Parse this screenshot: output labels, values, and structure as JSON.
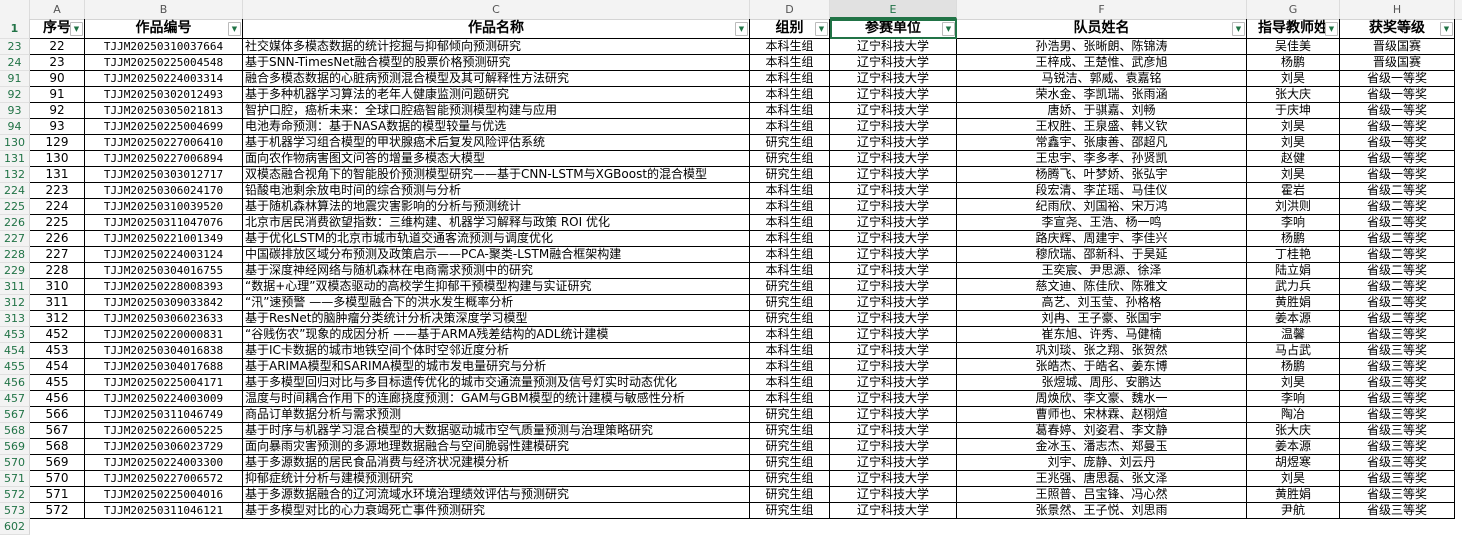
{
  "columns": [
    "A",
    "B",
    "C",
    "D",
    "E",
    "F",
    "G",
    "H"
  ],
  "selected_column": "E",
  "header_row_number": "1",
  "headers": [
    "序号",
    "作品编号",
    "作品名称",
    "组别",
    "参赛单位",
    "队员姓名",
    "指导教师姓",
    "获奖等级"
  ],
  "dropdown_icon": "filter-dropdown-icon",
  "accent_color": "#217346",
  "rows": [
    [
      "23",
      "22",
      "TJJM20250310037664",
      "社交媒体多模态数据的统计挖掘与抑郁倾向预测研究",
      "本科生组",
      "辽宁科技大学",
      "孙浩男、张晰朗、陈锦涛",
      "吴佳美",
      "晋级国赛"
    ],
    [
      "24",
      "23",
      "TJJM20250225004548",
      "基于SNN-TimesNet融合模型的股票价格预测研究",
      "本科生组",
      "辽宁科技大学",
      "王梓成、王楚惟、武彦旭",
      "杨鹏",
      "晋级国赛"
    ],
    [
      "91",
      "90",
      "TJJM20250224003314",
      "融合多模态数据的心脏病预测混合模型及其可解释性方法研究",
      "本科生组",
      "辽宁科技大学",
      "马锐洁、郭威、袁嘉铭",
      "刘昊",
      "省级一等奖"
    ],
    [
      "92",
      "91",
      "TJJM20250302012493",
      "基于多种机器学习算法的老年人健康监测问题研究",
      "本科生组",
      "辽宁科技大学",
      "荣水金、李凯瑞、张雨涵",
      "张大庆",
      "省级一等奖"
    ],
    [
      "93",
      "92",
      "TJJM20250305021813",
      "智护口腔，癌析未来：全球口腔癌智能预测模型构建与应用",
      "本科生组",
      "辽宁科技大学",
      "唐娇、于骐嘉、刘畅",
      "于庆坤",
      "省级一等奖"
    ],
    [
      "94",
      "93",
      "TJJM20250225004699",
      "电池寿命预测：基于NASA数据的模型较量与优选",
      "本科生组",
      "辽宁科技大学",
      "王权胜、王泉盛、韩义钦",
      "刘昊",
      "省级一等奖"
    ],
    [
      "130",
      "129",
      "TJJM20250227006410",
      "基于机器学习组合模型的甲状腺癌术后复发风险评估系统",
      "研究生组",
      "辽宁科技大学",
      "常鑫宇、张康善、邵超凡",
      "刘昊",
      "省级一等奖"
    ],
    [
      "131",
      "130",
      "TJJM20250227006894",
      "面向农作物病害图文问答的增量多模态大模型",
      "研究生组",
      "辽宁科技大学",
      "王忠宇、李多孝、孙贤凯",
      "赵健",
      "省级一等奖"
    ],
    [
      "132",
      "131",
      "TJJM20250303012717",
      "双模态融合视角下的智能股价预测模型研究——基于CNN-LSTM与XGBoost的混合模型",
      "研究生组",
      "辽宁科技大学",
      "杨腾飞、叶梦娇、张弘宇",
      "刘昊",
      "省级一等奖"
    ],
    [
      "224",
      "223",
      "TJJM20250306024170",
      "铅酸电池剩余放电时间的综合预测与分析",
      "本科生组",
      "辽宁科技大学",
      "段宏清、李芷瑶、马佳仪",
      "霍岩",
      "省级二等奖"
    ],
    [
      "225",
      "224",
      "TJJM20250310039520",
      "基于随机森林算法的地震灾害影响的分析与预测统计",
      "本科生组",
      "辽宁科技大学",
      "纪雨欣、刘国裕、宋万鸿",
      "刘洪则",
      "省级二等奖"
    ],
    [
      "226",
      "225",
      "TJJM20250311047076",
      "北京市居民消费欲望指数：三维构建、机器学习解释与政策 ROI 优化",
      "本科生组",
      "辽宁科技大学",
      "李宣尧、王浩、杨一鸣",
      "李响",
      "省级二等奖"
    ],
    [
      "227",
      "226",
      "TJJM20250221001349",
      "基于优化LSTM的北京市城市轨道交通客流预测与调度优化",
      "本科生组",
      "辽宁科技大学",
      "路庆辉、周建宇、李佳兴",
      "杨鹏",
      "省级二等奖"
    ],
    [
      "228",
      "227",
      "TJJM20250224003124",
      "中国碳排放区域分布预测及政策启示——PCA-聚类-LSTM融合框架构建",
      "本科生组",
      "辽宁科技大学",
      "穆欣瑞、邵新科、于昊延",
      "丁桂艳",
      "省级二等奖"
    ],
    [
      "229",
      "228",
      "TJJM20250304016755",
      "基于深度神经网络与随机森林在电商需求预测中的研究",
      "本科生组",
      "辽宁科技大学",
      "王奕宸、尹思源、徐泽",
      "陆立娟",
      "省级二等奖"
    ],
    [
      "311",
      "310",
      "TJJM20250228008393",
      "“数据+心理”双模态驱动的高校学生抑郁干预模型构建与实证研究",
      "研究生组",
      "辽宁科技大学",
      "慈文迪、陈佳欣、陈雅文",
      "武力兵",
      "省级二等奖"
    ],
    [
      "312",
      "311",
      "TJJM20250309033842",
      "“汛”速预警 ——多模型融合下的洪水发生概率分析",
      "研究生组",
      "辽宁科技大学",
      "高艺、刘玉莹、孙格格",
      "黄胜娟",
      "省级二等奖"
    ],
    [
      "313",
      "312",
      "TJJM20250306023633",
      "基于ResNet的脑肿瘤分类统计分析决策深度学习模型",
      "研究生组",
      "辽宁科技大学",
      "刘冉、王子豪、张国宇",
      "姜本源",
      "省级二等奖"
    ],
    [
      "453",
      "452",
      "TJJM20250220000831",
      "“谷贱伤农”现象的成因分析 ——基于ARMA残差结构的ADL统计建模",
      "本科生组",
      "辽宁科技大学",
      "崔东旭、许秀、马健楠",
      "温馨",
      "省级三等奖"
    ],
    [
      "454",
      "453",
      "TJJM20250304016838",
      "基于IC卡数据的城市地铁空间个体时空邻近度分析",
      "本科生组",
      "辽宁科技大学",
      "巩刘琰、张之翔、张贺然",
      "马占武",
      "省级三等奖"
    ],
    [
      "455",
      "454",
      "TJJM20250304017688",
      "基于ARIMA模型和SARIMA模型的城市发电量研究与分析",
      "本科生组",
      "辽宁科技大学",
      "张皓杰、于皓名、姜东博",
      "杨鹏",
      "省级三等奖"
    ],
    [
      "456",
      "455",
      "TJJM20250225004171",
      "基于多模型回归对比与多目标遗传优化的城市交通流量预测及信号灯实时动态优化",
      "本科生组",
      "辽宁科技大学",
      "张煜城、周彤、安鹏达",
      "刘昊",
      "省级三等奖"
    ],
    [
      "457",
      "456",
      "TJJM20250224003009",
      "温度与时间耦合作用下的连廊挠度预测：GAM与GBM模型的统计建模与敏感性分析",
      "本科生组",
      "辽宁科技大学",
      "周焕欣、李文豪、魏水一",
      "李响",
      "省级三等奖"
    ],
    [
      "567",
      "566",
      "TJJM20250311046749",
      "商品订单数据分析与需求预测",
      "研究生组",
      "辽宁科技大学",
      "曹师也、宋林霖、赵栩煊",
      "陶冶",
      "省级三等奖"
    ],
    [
      "568",
      "567",
      "TJJM20250226005225",
      "基于时序与机器学习混合模型的大数据驱动城市空气质量预测与治理策略研究",
      "研究生组",
      "辽宁科技大学",
      "葛春婷、刘姿君、李文静",
      "张大庆",
      "省级三等奖"
    ],
    [
      "569",
      "568",
      "TJJM20250306023729",
      "面向暴雨灾害预测的多源地理数据融合与空间脆弱性建模研究",
      "研究生组",
      "辽宁科技大学",
      "金冰玉、潘志杰、郑曼玉",
      "姜本源",
      "省级三等奖"
    ],
    [
      "570",
      "569",
      "TJJM20250224003300",
      "基于多源数据的居民食品消费与经济状况建模分析",
      "研究生组",
      "辽宁科技大学",
      "刘宇、庞静、刘云丹",
      "胡煜寒",
      "省级三等奖"
    ],
    [
      "571",
      "570",
      "TJJM20250227006572",
      "抑郁症统计分析与建模预测研究",
      "研究生组",
      "辽宁科技大学",
      "王兆强、唐思磊、张文泽",
      "刘昊",
      "省级三等奖"
    ],
    [
      "572",
      "571",
      "TJJM20250225004016",
      "基于多源数据融合的辽河流域水环境治理绩效评估与预测研究",
      "研究生组",
      "辽宁科技大学",
      "王照普、吕宝锋、冯心然",
      "黄胜娟",
      "省级三等奖"
    ],
    [
      "573",
      "572",
      "TJJM20250311046121",
      "基于多模型对比的心力衰竭死亡事件预测研究",
      "研究生组",
      "辽宁科技大学",
      "张景然、王子悦、刘思雨",
      "尹航",
      "省级三等奖"
    ]
  ],
  "next_row_number": "602"
}
